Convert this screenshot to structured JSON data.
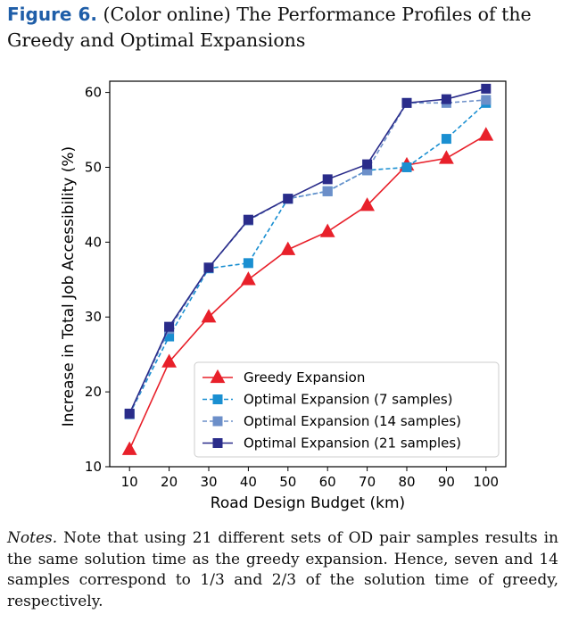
{
  "figure": {
    "label": "Figure 6.",
    "caption": "(Color online) The Performance Profiles of the Greedy and Optimal Expansions"
  },
  "notes": {
    "label": "Notes.",
    "text": "Note that using 21 different sets of OD pair samples results in the same solution time as the greedy expansion. Hence, seven and 14 samples correspond to 1/3 and 2/3 of the solution time of greedy, respectively."
  },
  "chart_data": {
    "type": "line",
    "title": "",
    "xlabel": "Road Design Budget (km)",
    "ylabel": "Increase in Total Job Accessibility (%)",
    "x": [
      10,
      20,
      30,
      40,
      50,
      60,
      70,
      80,
      90,
      100
    ],
    "xlim": [
      5,
      105
    ],
    "ylim": [
      10,
      61.5
    ],
    "xticks": [
      10,
      20,
      30,
      40,
      50,
      60,
      70,
      80,
      90,
      100
    ],
    "yticks": [
      10,
      20,
      30,
      40,
      50,
      60
    ],
    "grid": false,
    "legend_position": "bottom-right",
    "series": [
      {
        "name": "Greedy Expansion",
        "color": "#e8202a",
        "marker": "triangle",
        "dash": "solid",
        "values": [
          12.3,
          24.0,
          30.0,
          35.0,
          39.0,
          41.4,
          44.9,
          50.3,
          51.2,
          54.3
        ]
      },
      {
        "name": "Optimal Expansion (7 samples)",
        "color": "#1a8fd1",
        "marker": "square",
        "dash": "dashed",
        "values": [
          17.0,
          27.4,
          36.5,
          37.2,
          45.8,
          46.8,
          49.6,
          50.0,
          53.8,
          58.6
        ]
      },
      {
        "name": "Optimal Expansion (14 samples)",
        "color": "#6c8fc9",
        "marker": "square",
        "dash": "dashed",
        "values": [
          17.0,
          28.4,
          36.6,
          42.9,
          45.8,
          46.8,
          49.6,
          58.6,
          58.6,
          59.0
        ]
      },
      {
        "name": "Optimal Expansion (21 samples)",
        "color": "#2a2c8a",
        "marker": "square",
        "dash": "solid",
        "values": [
          17.1,
          28.7,
          36.6,
          43.0,
          45.8,
          48.4,
          50.4,
          58.6,
          59.1,
          60.5
        ]
      }
    ]
  }
}
